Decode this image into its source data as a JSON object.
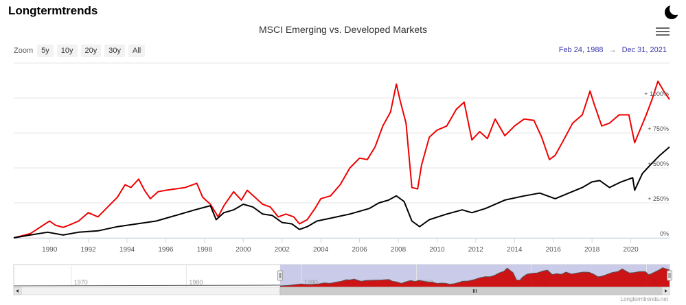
{
  "brand": "Longtermtrends",
  "title": "MSCI Emerging vs. Developed Markets",
  "zoom": {
    "label": "Zoom",
    "buttons": [
      "5y",
      "10y",
      "20y",
      "30y",
      "All"
    ]
  },
  "range": {
    "from": "Feb 24, 1988",
    "arrow": "→",
    "to": "Dec 31, 2021"
  },
  "credit": "Longtermtrends.net",
  "icons": {
    "theme": "moon-icon",
    "menu": "hamburger-menu-icon"
  },
  "colors": {
    "emerging": "#ee0000",
    "developed": "#000000",
    "navigator_mask": "#c9cbe8",
    "navigator_fill": "#cc0000"
  },
  "chart_data": {
    "type": "line",
    "title": "MSCI Emerging vs. Developed Markets",
    "x_unit": "year",
    "xlim": [
      1988.15,
      2022.0
    ],
    "ylim": [
      0,
      1000
    ],
    "y_ticks": [
      0,
      250,
      500,
      750,
      1000
    ],
    "y_tick_labels": [
      "0%",
      "+ 250%",
      "+ 500%",
      "+ 750%",
      "+ 1000%"
    ],
    "x_ticks": [
      1990,
      1992,
      1994,
      1996,
      1998,
      2000,
      2002,
      2004,
      2006,
      2008,
      2010,
      2012,
      2014,
      2016,
      2018,
      2020
    ],
    "x_tick_labels": [
      "1990",
      "1992",
      "1994",
      "1996",
      "1998",
      "2000",
      "2002",
      "2004",
      "2006",
      "2008",
      "2010",
      "2012",
      "2014",
      "2016",
      "2018",
      "2020"
    ],
    "series": [
      {
        "name": "MSCI Emerging Markets",
        "color": "#ee0000",
        "x": [
          1988.15,
          1988.6,
          1989.0,
          1989.5,
          1990.0,
          1990.3,
          1990.7,
          1991.0,
          1991.5,
          1992.0,
          1992.5,
          1993.0,
          1993.5,
          1993.9,
          1994.2,
          1994.6,
          1994.9,
          1995.2,
          1995.6,
          1996.0,
          1996.5,
          1997.0,
          1997.6,
          1997.9,
          1998.3,
          1998.7,
          1999.0,
          1999.5,
          1999.9,
          2000.2,
          2000.6,
          2001.0,
          2001.4,
          2001.8,
          2002.2,
          2002.6,
          2002.9,
          2003.3,
          2003.7,
          2004.0,
          2004.5,
          2005.0,
          2005.5,
          2006.0,
          2006.4,
          2006.8,
          2007.2,
          2007.6,
          2007.9,
          2008.1,
          2008.4,
          2008.7,
          2009.0,
          2009.2,
          2009.6,
          2010.0,
          2010.5,
          2011.0,
          2011.4,
          2011.8,
          2012.2,
          2012.6,
          2013.0,
          2013.5,
          2014.0,
          2014.5,
          2015.0,
          2015.4,
          2015.8,
          2016.1,
          2016.5,
          2017.0,
          2017.5,
          2017.9,
          2018.1,
          2018.5,
          2018.9,
          2019.4,
          2019.9,
          2020.2,
          2020.5,
          2020.8,
          2021.1,
          2021.4,
          2021.7,
          2022.0
        ],
        "values": [
          0,
          15,
          30,
          75,
          120,
          90,
          75,
          90,
          120,
          180,
          150,
          220,
          290,
          380,
          360,
          420,
          340,
          280,
          330,
          340,
          350,
          360,
          390,
          290,
          240,
          150,
          230,
          330,
          270,
          340,
          290,
          240,
          220,
          150,
          170,
          150,
          100,
          130,
          210,
          280,
          300,
          380,
          500,
          570,
          560,
          650,
          800,
          900,
          1100,
          980,
          820,
          360,
          350,
          520,
          720,
          770,
          800,
          920,
          970,
          700,
          760,
          710,
          850,
          730,
          800,
          850,
          840,
          720,
          560,
          590,
          690,
          820,
          880,
          1050,
          960,
          800,
          820,
          880,
          880,
          680,
          780,
          880,
          990,
          1120,
          1050,
          990
        ]
      },
      {
        "name": "MSCI World (Developed Markets)",
        "color": "#000000",
        "x": [
          1988.15,
          1989.0,
          1989.9,
          1990.7,
          1991.5,
          1992.5,
          1993.5,
          1994.5,
          1995.5,
          1996.5,
          1997.5,
          1998.3,
          1998.6,
          1999.0,
          1999.5,
          2000.0,
          2000.5,
          2001.0,
          2001.5,
          2002.0,
          2002.5,
          2002.9,
          2003.3,
          2003.8,
          2004.5,
          2005.5,
          2006.5,
          2007.0,
          2007.5,
          2007.9,
          2008.3,
          2008.7,
          2009.1,
          2009.6,
          2010.5,
          2011.3,
          2011.8,
          2012.5,
          2013.5,
          2014.5,
          2015.3,
          2016.1,
          2016.8,
          2017.5,
          2018.0,
          2018.4,
          2018.9,
          2019.5,
          2020.1,
          2020.2,
          2020.6,
          2021.0,
          2021.5,
          2022.0
        ],
        "values": [
          0,
          20,
          40,
          20,
          40,
          50,
          80,
          100,
          120,
          160,
          200,
          230,
          130,
          180,
          200,
          240,
          220,
          170,
          160,
          110,
          100,
          60,
          80,
          120,
          140,
          170,
          210,
          250,
          270,
          300,
          260,
          120,
          80,
          130,
          170,
          200,
          180,
          210,
          270,
          300,
          320,
          280,
          320,
          360,
          400,
          410,
          360,
          400,
          430,
          340,
          460,
          520,
          590,
          650
        ]
      }
    ],
    "navigator": {
      "x_tick_labels": [
        "1970",
        "1980",
        "1990",
        "2000",
        "2010",
        "2020"
      ],
      "x_ticks": [
        1970,
        1980,
        1990,
        2000,
        2010,
        2020
      ],
      "xlim": [
        1965,
        2022
      ],
      "selected": [
        1988.15,
        2022.0
      ]
    }
  }
}
